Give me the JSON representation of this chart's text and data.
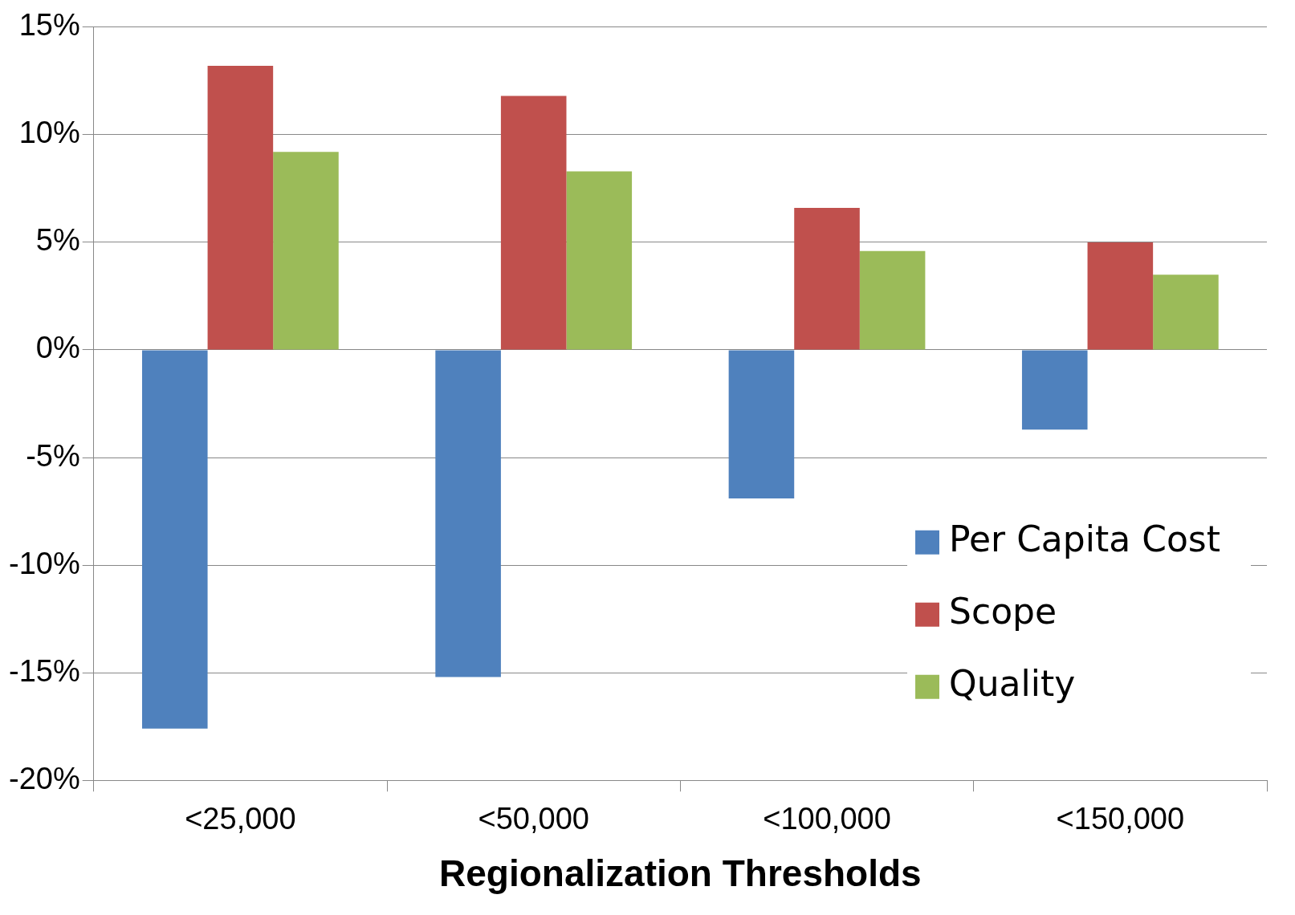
{
  "chart_data": {
    "type": "bar",
    "xlabel": "Regionalization Thresholds",
    "categories": [
      "<25,000",
      "<50,000",
      "<100,000",
      "<150,000"
    ],
    "series": [
      {
        "name": "Per Capita Cost",
        "color": "#4f81bd",
        "values": [
          -17.6,
          -15.2,
          -6.9,
          -3.7
        ]
      },
      {
        "name": "Scope",
        "color": "#c0504d",
        "values": [
          13.2,
          11.8,
          6.6,
          5.0
        ]
      },
      {
        "name": "Quality",
        "color": "#9bbb59",
        "values": [
          9.2,
          8.3,
          4.6,
          3.5
        ]
      }
    ],
    "ylim": [
      -20,
      15
    ],
    "yticks": [
      {
        "value": -20,
        "label": "-20%"
      },
      {
        "value": -15,
        "label": "-15%"
      },
      {
        "value": -10,
        "label": "-10%"
      },
      {
        "value": -5,
        "label": "-5%"
      },
      {
        "value": 0,
        "label": "0%"
      },
      {
        "value": 5,
        "label": "5%"
      },
      {
        "value": 10,
        "label": "10%"
      },
      {
        "value": 15,
        "label": "15%"
      }
    ],
    "grid": "y",
    "legend": "right"
  }
}
